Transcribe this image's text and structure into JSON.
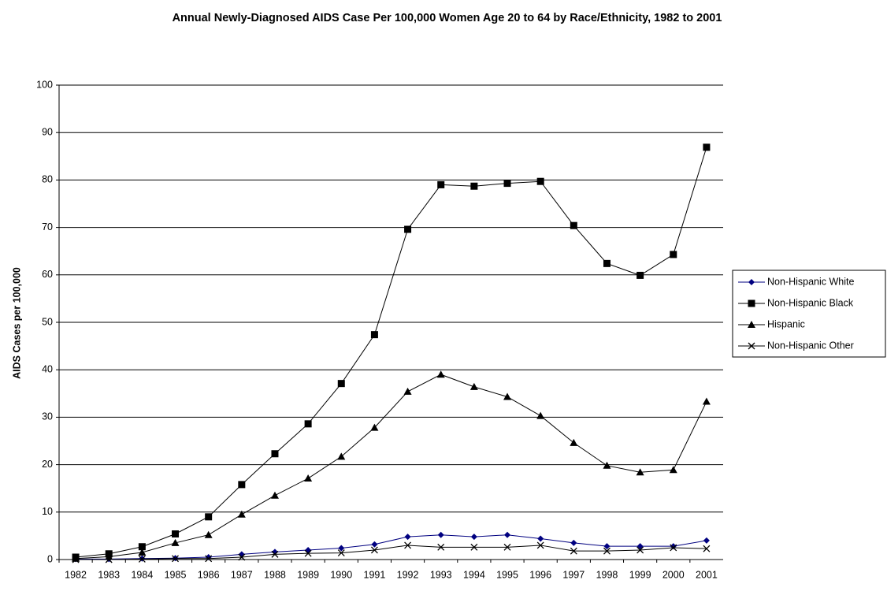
{
  "chart_data": {
    "type": "line",
    "title": "Annual Newly-Diagnosed AIDS Case Per 100,000 Women Age 20 to 64 by Race/Ethnicity, 1982 to 2001",
    "y_label": "AIDS Cases per 100,000",
    "categories": [
      "1982",
      "1983",
      "1984",
      "1985",
      "1986",
      "1987",
      "1988",
      "1989",
      "1990",
      "1991",
      "1992",
      "1993",
      "1994",
      "1995",
      "1996",
      "1997",
      "1998",
      "1999",
      "2000",
      "2001"
    ],
    "series": [
      {
        "name": "Non-Hispanic White",
        "color": "#000080",
        "marker": "diamond",
        "values": [
          0.1,
          0.1,
          0.2,
          0.3,
          0.5,
          1.1,
          1.6,
          2.0,
          2.4,
          3.2,
          4.8,
          5.2,
          4.8,
          5.2,
          4.4,
          3.5,
          2.8,
          2.8,
          2.8,
          4.0
        ]
      },
      {
        "name": "Non-Hispanic Black",
        "color": "#000000",
        "marker": "square",
        "values": [
          0.5,
          1.2,
          2.7,
          5.4,
          9.0,
          15.8,
          22.3,
          28.6,
          37.1,
          47.4,
          69.6,
          79.0,
          78.7,
          79.3,
          79.7,
          70.4,
          62.4,
          59.9,
          64.3,
          86.9
        ]
      },
      {
        "name": "Hispanic",
        "color": "#000000",
        "marker": "triangle",
        "values": [
          0.2,
          0.6,
          1.5,
          3.5,
          5.2,
          9.5,
          13.5,
          17.1,
          21.7,
          27.8,
          35.4,
          39.0,
          36.4,
          34.3,
          30.3,
          24.6,
          19.8,
          18.4,
          18.9,
          33.3
        ]
      },
      {
        "name": "Non-Hispanic Other",
        "color": "#000000",
        "marker": "x",
        "values": [
          0.0,
          0.0,
          0.1,
          0.2,
          0.2,
          0.5,
          1.1,
          1.3,
          1.4,
          2.0,
          3.0,
          2.6,
          2.6,
          2.6,
          3.0,
          1.8,
          1.8,
          2.0,
          2.5,
          2.3
        ]
      }
    ],
    "ylim": [
      0,
      100
    ],
    "yticks": [
      0,
      10,
      20,
      30,
      40,
      50,
      60,
      70,
      80,
      90,
      100
    ],
    "grid": true,
    "legend": "right"
  }
}
